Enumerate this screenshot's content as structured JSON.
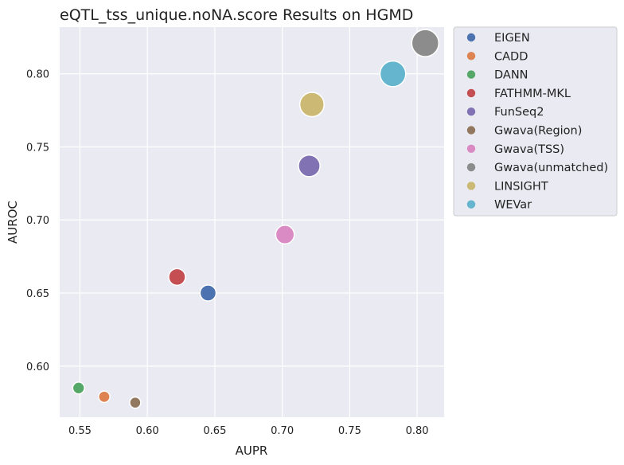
{
  "chart_data": {
    "type": "scatter",
    "title": "eQTL_tss_unique.noNA.score Results on HGMD",
    "xlabel": "AUPR",
    "ylabel": "AUROC",
    "xlim": [
      0.535,
      0.82
    ],
    "ylim": [
      0.565,
      0.832
    ],
    "xticks": [
      "0.55",
      "0.60",
      "0.65",
      "0.70",
      "0.75",
      "0.80"
    ],
    "yticks": [
      "0.60",
      "0.65",
      "0.70",
      "0.75",
      "0.80"
    ],
    "grid": true,
    "legend_position": "outside-right-top",
    "size_encoding": "marker size increases with AUROC",
    "series": [
      {
        "name": "EIGEN",
        "x": 0.645,
        "y": 0.65,
        "color": "#4c72b0"
      },
      {
        "name": "CADD",
        "x": 0.568,
        "y": 0.579,
        "color": "#dd8452"
      },
      {
        "name": "DANN",
        "x": 0.549,
        "y": 0.585,
        "color": "#55a868"
      },
      {
        "name": "FATHMM-MKL",
        "x": 0.622,
        "y": 0.661,
        "color": "#c44e52"
      },
      {
        "name": "FunSeq2",
        "x": 0.72,
        "y": 0.737,
        "color": "#8172b3"
      },
      {
        "name": "Gwava(Region)",
        "x": 0.591,
        "y": 0.575,
        "color": "#937860"
      },
      {
        "name": "Gwava(TSS)",
        "x": 0.702,
        "y": 0.69,
        "color": "#da8bc3"
      },
      {
        "name": "Gwava(unmatched)",
        "x": 0.806,
        "y": 0.821,
        "color": "#8c8c8c"
      },
      {
        "name": "LINSIGHT",
        "x": 0.722,
        "y": 0.779,
        "color": "#ccb974"
      },
      {
        "name": "WEVar",
        "x": 0.782,
        "y": 0.8,
        "color": "#64b5cd"
      }
    ]
  }
}
